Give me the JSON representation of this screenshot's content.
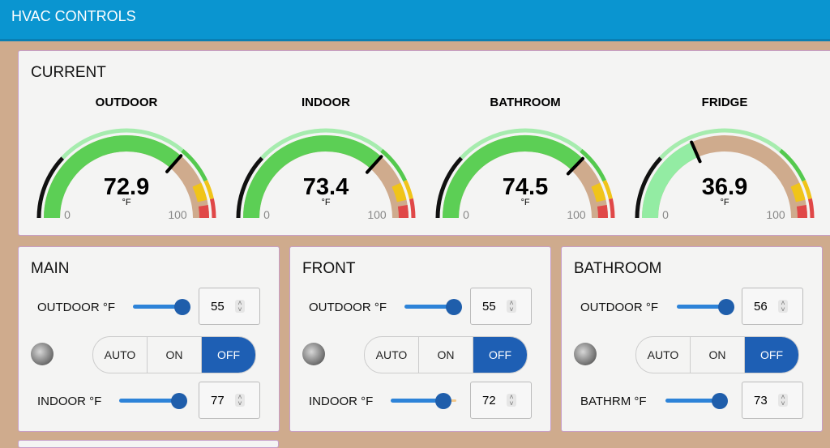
{
  "header": {
    "title": "HVAC CONTROLS"
  },
  "current": {
    "title": "CURRENT",
    "gauges": [
      {
        "label": "OUTDOOR",
        "value": 72.9,
        "unit": "°F",
        "min": 0,
        "max": 100,
        "fill_color": "#5ccf55"
      },
      {
        "label": "INDOOR",
        "value": 73.4,
        "unit": "°F",
        "min": 0,
        "max": 100,
        "fill_color": "#5ccf55"
      },
      {
        "label": "BATHROOM",
        "value": 74.5,
        "unit": "°F",
        "min": 0,
        "max": 100,
        "fill_color": "#5ccf55"
      },
      {
        "label": "FRIDGE",
        "value": 36.9,
        "unit": "°F",
        "min": 0,
        "max": 100,
        "fill_color": "#93eca3"
      }
    ]
  },
  "zones": [
    {
      "title": "MAIN",
      "controls": [
        {
          "label": "OUTDOOR °F",
          "value": 55
        },
        {
          "label": "INDOOR °F",
          "value": 77
        }
      ],
      "modes": [
        {
          "label": "AUTO",
          "active": false
        },
        {
          "label": "ON",
          "active": false
        },
        {
          "label": "OFF",
          "active": true
        }
      ]
    },
    {
      "title": "FRONT",
      "controls": [
        {
          "label": "OUTDOOR °F",
          "value": 55
        },
        {
          "label": "INDOOR °F",
          "value": 72
        }
      ],
      "modes": [
        {
          "label": "AUTO",
          "active": false
        },
        {
          "label": "ON",
          "active": false
        },
        {
          "label": "OFF",
          "active": true
        }
      ]
    },
    {
      "title": "BATHROOM",
      "controls": [
        {
          "label": "OUTDOOR °F",
          "value": 56
        },
        {
          "label": "BATHRM °F",
          "value": 73
        }
      ],
      "modes": [
        {
          "label": "AUTO",
          "active": false
        },
        {
          "label": "ON",
          "active": false
        },
        {
          "label": "OFF",
          "active": true
        }
      ]
    }
  ]
}
